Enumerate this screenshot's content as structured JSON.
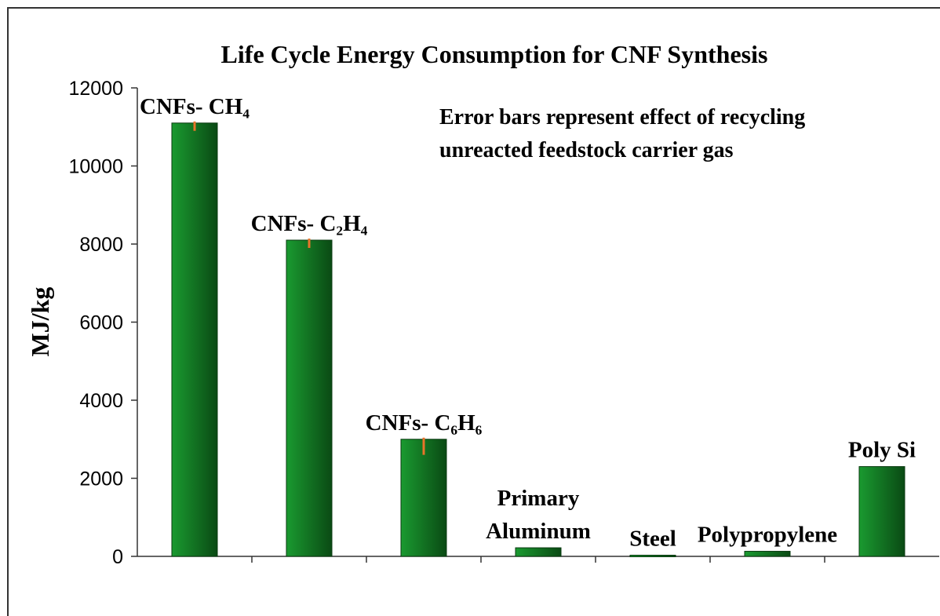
{
  "chart_data": {
    "type": "bar",
    "title": "Life Cycle Energy Consumption for CNF Synthesis",
    "annotation": [
      "Error bars represent effect of recycling",
      "unreacted feedstock carrier gas"
    ],
    "y_label": "MJ/kg",
    "categories": [
      "CNFs- CH₄",
      "CNFs- C₂H₄",
      "CNFs- C₆H₆",
      "Primary Aluminum",
      "Steel",
      "Polypropylene",
      "Poly Si"
    ],
    "values": [
      11100,
      8100,
      3000,
      220,
      30,
      130,
      2300
    ],
    "errors": [
      200,
      200,
      400,
      null,
      null,
      null,
      null
    ],
    "color": "#137a25",
    "error_color": "#e8742a",
    "ylim": [
      0,
      12000
    ],
    "yticks": [
      0,
      2000,
      4000,
      6000,
      8000,
      10000,
      12000
    ],
    "grid": false
  }
}
